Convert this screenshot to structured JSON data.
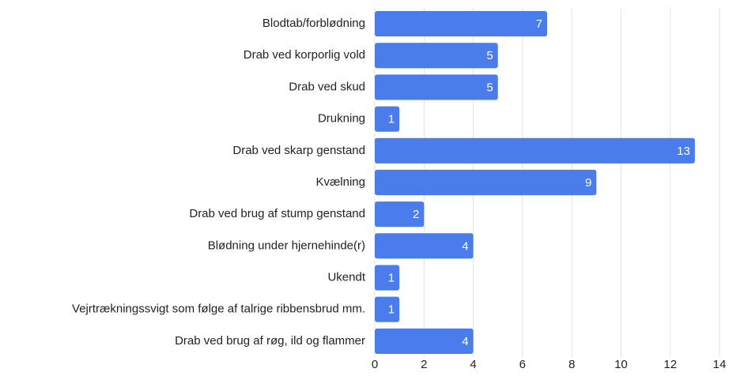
{
  "chart_data": {
    "type": "hbar",
    "categories": [
      "Blodtab/forblødning",
      "Drab ved korporlig vold",
      "Drab ved skud",
      "Drukning",
      "Drab ved skarp genstand",
      "Kvælning",
      "Drab ved brug af stump genstand",
      "Blødning under hjernehinde(r)",
      "Ukendt",
      "Vejrtrækningssvigt som følge af talrige ribbensbrud mm.",
      "Drab ved brug af røg, ild og flammer"
    ],
    "values": [
      7,
      5,
      5,
      1,
      13,
      9,
      2,
      4,
      1,
      1,
      4
    ],
    "color": "#4a7cec",
    "xlim": [
      0,
      14
    ],
    "xticks": [
      0,
      2,
      4,
      6,
      8,
      10,
      12,
      14
    ],
    "grid": true
  }
}
